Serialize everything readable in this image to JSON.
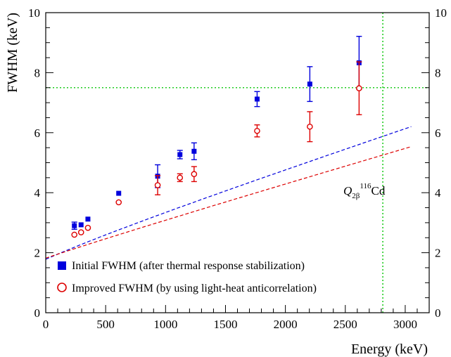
{
  "chart_data": {
    "type": "scatter",
    "xlabel": "Energy (keV)",
    "ylabel": "FWHM (keV)",
    "xlim": [
      0,
      3200
    ],
    "ylim": [
      0,
      10
    ],
    "x_ticks": [
      "0",
      "500",
      "1000",
      "1500",
      "2000",
      "2500",
      "3000"
    ],
    "y_ticks": [
      "0",
      "2",
      "4",
      "6",
      "8",
      "10"
    ],
    "y_ticks_right": [
      "0",
      "2",
      "4",
      "6",
      "8",
      "10"
    ],
    "grid": false,
    "legend_placement": "bottom-left",
    "series": [
      {
        "name": "Initial FWHM (after thermal response stabilization)",
        "marker": "filled-square",
        "color": "#0000dd",
        "points": [
          {
            "x": 239,
            "y": 2.9,
            "err": 0.12
          },
          {
            "x": 295,
            "y": 2.93,
            "err": 0.0
          },
          {
            "x": 352,
            "y": 3.12,
            "err": 0.0
          },
          {
            "x": 609,
            "y": 3.98,
            "err": 0.0
          },
          {
            "x": 934,
            "y": 4.55,
            "err": 0.38
          },
          {
            "x": 1120,
            "y": 5.27,
            "err": 0.14
          },
          {
            "x": 1238,
            "y": 5.38,
            "err": 0.28
          },
          {
            "x": 1764,
            "y": 7.12,
            "err": 0.25
          },
          {
            "x": 2204,
            "y": 7.62,
            "err": 0.58
          },
          {
            "x": 2615,
            "y": 8.33,
            "err": 0.88
          }
        ],
        "fit": {
          "a": 1.78,
          "b": 2.5,
          "range": [
            0,
            3050
          ]
        }
      },
      {
        "name": "Improved FWHM (by using light-heat anticorrelation)",
        "marker": "open-circle",
        "color": "#dd0000",
        "points": [
          {
            "x": 239,
            "y": 2.6,
            "err": 0.0
          },
          {
            "x": 295,
            "y": 2.68,
            "err": 0.0
          },
          {
            "x": 352,
            "y": 2.83,
            "err": 0.0
          },
          {
            "x": 609,
            "y": 3.68,
            "err": 0.0
          },
          {
            "x": 934,
            "y": 4.25,
            "err": 0.32
          },
          {
            "x": 1120,
            "y": 4.5,
            "err": 0.13
          },
          {
            "x": 1238,
            "y": 4.62,
            "err": 0.25
          },
          {
            "x": 1764,
            "y": 6.06,
            "err": 0.2
          },
          {
            "x": 2204,
            "y": 6.2,
            "err": 0.5
          },
          {
            "x": 2615,
            "y": 7.48,
            "err": 0.88
          }
        ],
        "fit": {
          "a": 1.82,
          "b": 2.2,
          "range": [
            0,
            3050
          ]
        }
      }
    ],
    "reference_lines": [
      {
        "orientation": "horizontal",
        "value": 7.5,
        "color": "#22cc22"
      },
      {
        "orientation": "vertical",
        "value": 2813,
        "color": "#22cc22"
      }
    ],
    "annotation": {
      "base": "Q",
      "subscript": "2β",
      "superscript": "116",
      "element": "Cd",
      "color": "#22cc22"
    }
  }
}
